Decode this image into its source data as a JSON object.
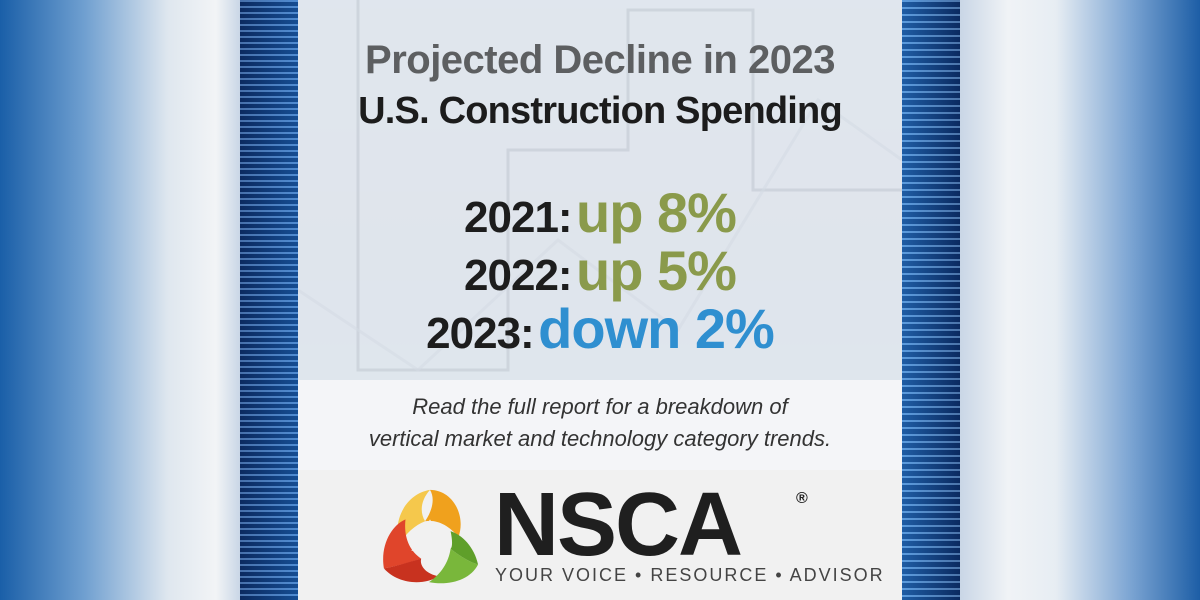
{
  "headline": {
    "line1": "Projected Decline in 2023",
    "line2": "U.S. Construction Spending"
  },
  "stats": [
    {
      "year": "2021:",
      "value": "up 8%",
      "color": "#8a9a4b"
    },
    {
      "year": "2022:",
      "value": "up 5%",
      "color": "#8a9a4b"
    },
    {
      "year": "2023:",
      "value": "down 2%",
      "color": "#2f8fd0"
    }
  ],
  "caption": {
    "line1": "Read the full report for a breakdown of",
    "line2": "vertical market and technology category trends."
  },
  "logo": {
    "name": "NSCA",
    "registered": "®",
    "tagline": "YOUR VOICE • RESOURCE • ADVISOR",
    "colors": {
      "orange": "#f0a11d",
      "red": "#e0452b",
      "green": "#79b73b"
    }
  }
}
